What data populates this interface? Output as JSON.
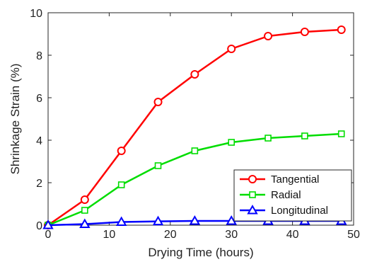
{
  "chart_data": {
    "type": "line",
    "title": "",
    "xlabel": "Drying Time (hours)",
    "ylabel": "Shrinkage Strain (%)",
    "xlim": [
      0,
      50
    ],
    "ylim": [
      0,
      10
    ],
    "xticks": [
      0,
      10,
      20,
      30,
      40,
      50
    ],
    "yticks": [
      0,
      2,
      4,
      6,
      8,
      10
    ],
    "grid": false,
    "legend_position": "bottom-right",
    "x": [
      0,
      6,
      12,
      18,
      24,
      30,
      36,
      42,
      48
    ],
    "series": [
      {
        "name": "Tangential",
        "color": "#ff0000",
        "marker": "circle",
        "values": [
          0,
          1.2,
          3.5,
          5.8,
          7.1,
          8.3,
          8.9,
          9.1,
          9.2
        ]
      },
      {
        "name": "Radial",
        "color": "#00dd00",
        "marker": "square",
        "values": [
          0,
          0.7,
          1.9,
          2.8,
          3.5,
          3.9,
          4.1,
          4.2,
          4.3
        ]
      },
      {
        "name": "Longitudinal",
        "color": "#0000ff",
        "marker": "triangle",
        "values": [
          0,
          0.05,
          0.15,
          0.18,
          0.2,
          0.2,
          0.2,
          0.2,
          0.2
        ]
      }
    ]
  }
}
